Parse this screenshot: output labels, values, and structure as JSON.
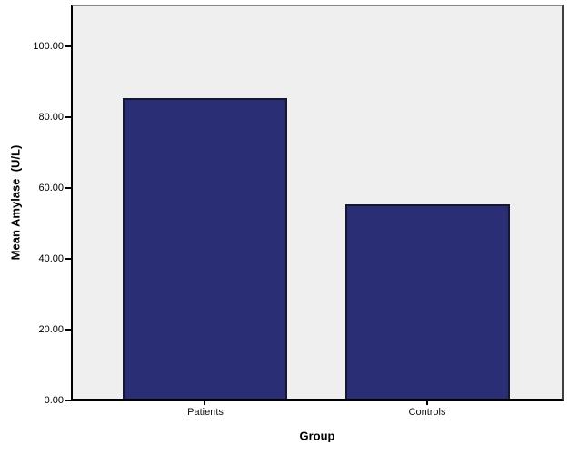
{
  "chart_data": {
    "type": "bar",
    "title": "",
    "xlabel": "Group",
    "ylabel": "Mean Amylase  (U/L)",
    "categories": [
      "Patients",
      "Controls"
    ],
    "values": [
      85,
      55
    ],
    "yticks": [
      0,
      20,
      40,
      60,
      80,
      100
    ],
    "ytick_labels": [
      "0.00",
      "20.00",
      "40.00",
      "60.00",
      "80.00",
      "100.00"
    ],
    "ylim": [
      0,
      110.8
    ],
    "grid": false,
    "legend_position": "none",
    "bar_color": "#2a2e74",
    "bar_border_color": "#17172f",
    "plot_background": "#efefef",
    "frame_top_color": "#8a8a8a",
    "frame_right_color": "#3f3f3f",
    "axis_color": "#000000"
  }
}
